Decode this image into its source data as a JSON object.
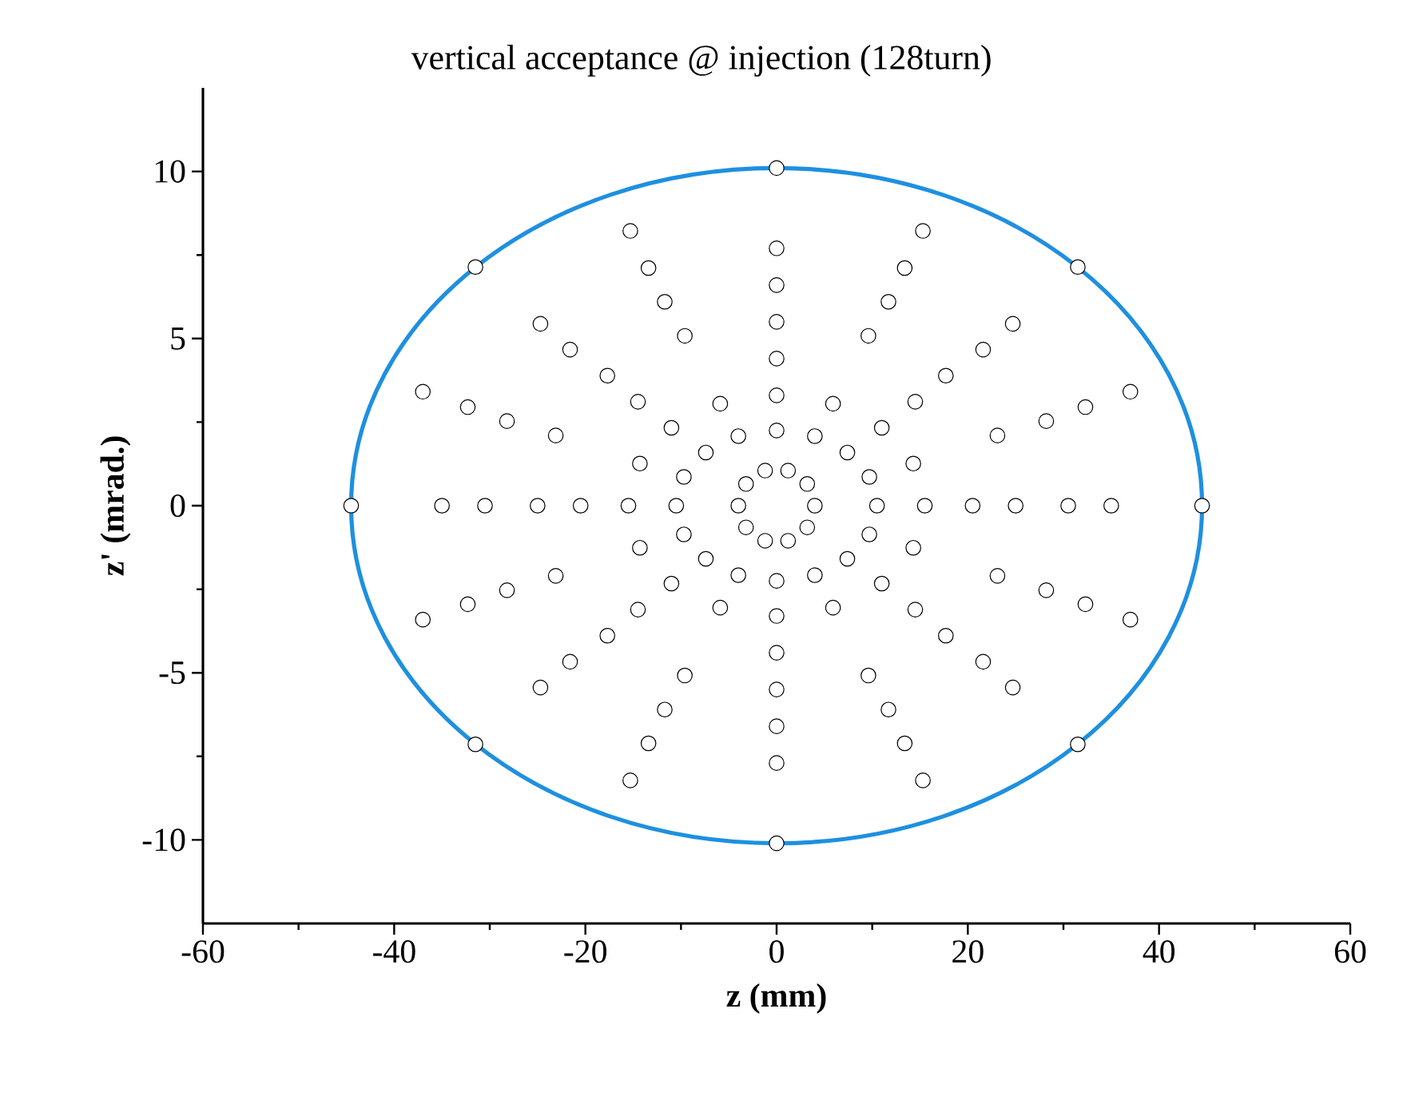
{
  "chart_data": {
    "type": "scatter",
    "title": "vertical acceptance @ injection (128turn)",
    "xlabel": "z (mm)",
    "ylabel": "z' (mrad.)",
    "xlim": [
      -60,
      60
    ],
    "ylim": [
      -12.5,
      12.5
    ],
    "xticks": [
      -60,
      -40,
      -20,
      0,
      20,
      40,
      60
    ],
    "yticks": [
      -10,
      -5,
      0,
      5,
      10
    ],
    "grid": false,
    "series": [
      {
        "color": "#000000",
        "x": [
          4,
          3.2,
          1.2,
          -1.2,
          -3.2,
          -4,
          -3.2,
          -1.2,
          1.2,
          3.2,
          10.5,
          9.7,
          7.4,
          4.0,
          0,
          -4.0,
          -7.4,
          -9.7,
          -10.5,
          -9.7,
          -7.4,
          -4.0,
          0,
          4.0,
          7.4,
          9.7,
          15.5,
          14.3,
          11.0,
          5.9,
          0,
          -5.9,
          -11.0,
          -14.3,
          -15.5,
          -14.3,
          -11.0,
          -5.9,
          0,
          5.9,
          11.0,
          14.3,
          20.5,
          14.5,
          0,
          -14.5,
          -20.5,
          -14.5,
          0,
          14.5,
          25,
          23.1,
          17.7,
          9.6,
          0,
          -9.6,
          -17.7,
          -23.1,
          -25,
          -23.1,
          -17.7,
          -9.6,
          0,
          9.6,
          17.7,
          23.1,
          30.5,
          28.2,
          21.6,
          11.7,
          0,
          -11.7,
          -21.6,
          -28.2,
          -30.5,
          -28.2,
          -21.6,
          -11.7,
          0,
          11.7,
          21.6,
          28.2,
          35,
          32.3,
          24.7,
          13.4,
          0,
          -13.4,
          -24.7,
          -32.3,
          -35,
          -32.3,
          -24.7,
          -13.4,
          0,
          13.4,
          24.7,
          32.3,
          37.0,
          15.3,
          -15.3,
          -37.0,
          -37.0,
          -15.3,
          15.3,
          37.0,
          44.5,
          31.5,
          0,
          -31.5,
          -44.5,
          -31.5,
          0,
          31.5
        ],
        "values": [
          0,
          0.65,
          1.05,
          1.05,
          0.65,
          0,
          -0.65,
          -1.05,
          -1.05,
          -0.65,
          0,
          0.86,
          1.59,
          2.08,
          2.25,
          2.08,
          1.59,
          0.86,
          0,
          -0.86,
          -1.59,
          -2.08,
          -2.25,
          -2.08,
          -1.59,
          -0.86,
          0,
          1.26,
          2.33,
          3.05,
          3.3,
          3.05,
          2.33,
          1.26,
          0,
          -1.26,
          -2.33,
          -3.05,
          -3.3,
          -3.05,
          -2.33,
          -1.26,
          0,
          3.11,
          4.4,
          3.11,
          0,
          -3.11,
          -4.4,
          -3.11,
          0,
          2.1,
          3.89,
          5.08,
          5.5,
          5.08,
          3.89,
          2.1,
          0,
          -2.1,
          -3.89,
          -5.08,
          -5.5,
          -5.08,
          -3.89,
          -2.1,
          0,
          2.53,
          4.67,
          6.1,
          6.6,
          6.1,
          4.67,
          2.53,
          0,
          -2.53,
          -4.67,
          -6.1,
          -6.6,
          -6.1,
          -4.67,
          -2.53,
          0,
          2.95,
          5.44,
          7.11,
          7.7,
          7.11,
          5.44,
          2.95,
          0,
          -2.95,
          -5.44,
          -7.11,
          -7.7,
          -7.11,
          -5.44,
          -2.95,
          3.41,
          8.22,
          8.22,
          3.41,
          -3.41,
          -8.22,
          -8.22,
          -3.41,
          0,
          7.14,
          10.1,
          7.14,
          0,
          -7.14,
          -10.1,
          -7.14
        ]
      }
    ]
  }
}
